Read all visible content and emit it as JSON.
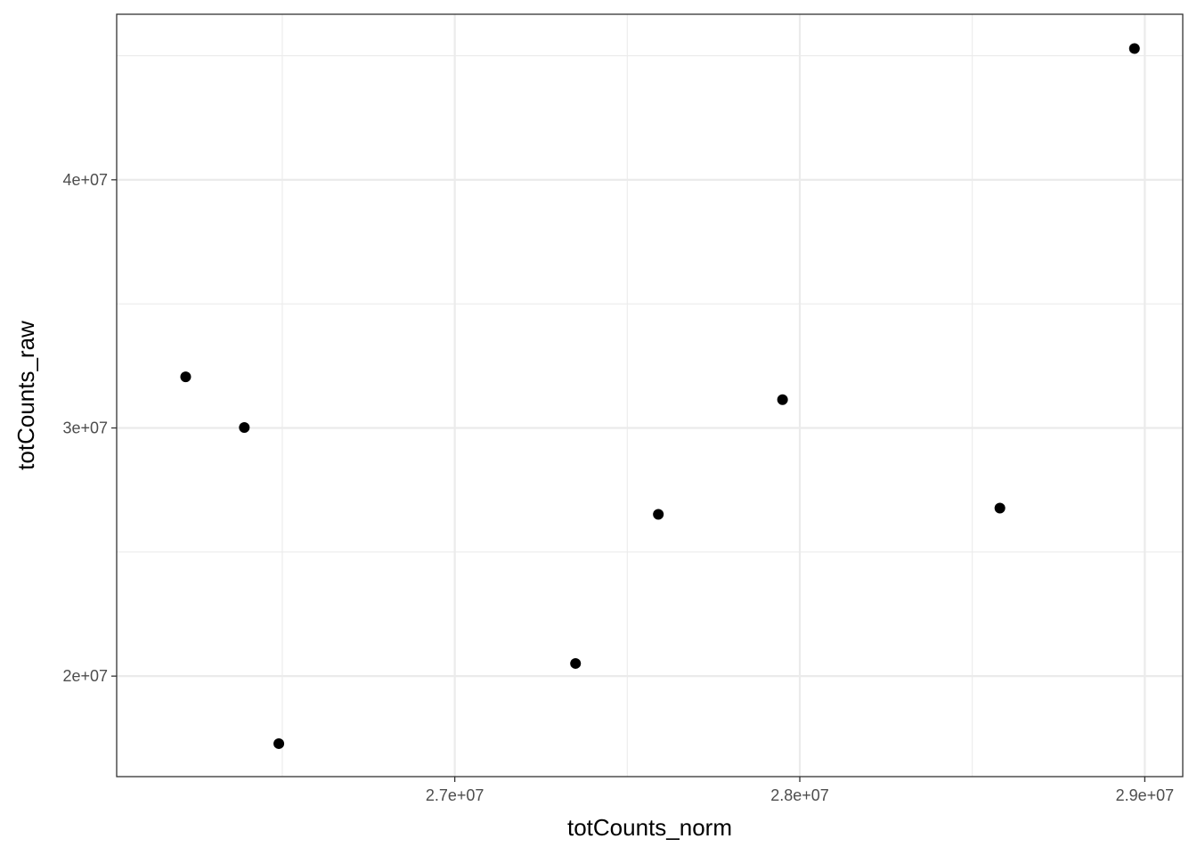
{
  "chart_data": {
    "type": "scatter",
    "title": "",
    "xlabel": "totCounts_norm",
    "ylabel": "totCounts_raw",
    "xlim": [
      26020000,
      29110000
    ],
    "ylim": [
      15950000,
      46670000
    ],
    "x_ticks": [
      27000000,
      28000000,
      29000000
    ],
    "x_tick_labels": [
      "2.7e+07",
      "2.8e+07",
      "2.9e+07"
    ],
    "x_minor_ticks": [
      26500000,
      27500000,
      28500000
    ],
    "y_ticks": [
      20000000,
      30000000,
      40000000
    ],
    "y_tick_labels": [
      "2e+07",
      "3e+07",
      "4e+07"
    ],
    "y_minor_ticks": [
      25000000,
      35000000,
      45000000
    ],
    "grid": true,
    "theme": "bw",
    "point_color": "#000000",
    "grid_color": "#ebebeb",
    "panel_border_color": "#333333",
    "points": [
      {
        "x": 26220000,
        "y": 32060000
      },
      {
        "x": 26390000,
        "y": 30020000
      },
      {
        "x": 26490000,
        "y": 17280000
      },
      {
        "x": 27350000,
        "y": 20510000
      },
      {
        "x": 27590000,
        "y": 26520000
      },
      {
        "x": 27950000,
        "y": 31140000
      },
      {
        "x": 28580000,
        "y": 26770000
      },
      {
        "x": 28970000,
        "y": 45290000
      }
    ]
  }
}
